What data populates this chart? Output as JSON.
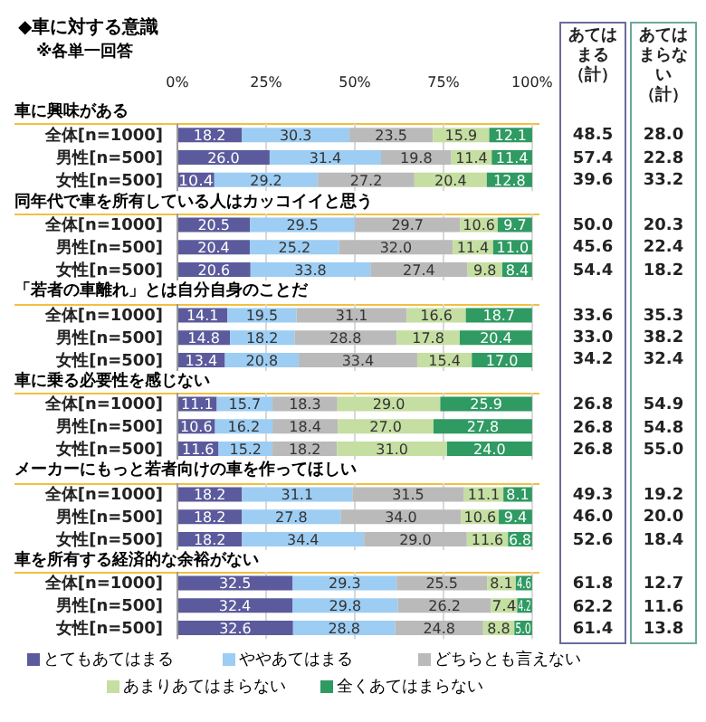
{
  "chart_data": [
    {
      "type": "other",
      "title": "◆車に対する意識",
      "subtitle": "※各単一回答"
    },
    {
      "type": "bar",
      "orientation": "horizontal",
      "stacked": true,
      "title": "車に興味がある",
      "categories": [
        "全体[n=1000]",
        "男性[n=500]",
        "女性[n=500]"
      ],
      "series": [
        {
          "color": "#5b5a9c",
          "values": [
            18.2,
            26.0,
            10.4
          ],
          "value_labels": [
            "18.2",
            "26.0",
            "10.4"
          ]
        },
        {
          "color": "#9dcdf3",
          "values": [
            30.3,
            31.4,
            29.2
          ],
          "value_labels": [
            "30.3",
            "31.4",
            "29.2"
          ]
        },
        {
          "color": "#bababa",
          "values": [
            23.5,
            19.8,
            27.2
          ],
          "value_labels": [
            "23.5",
            "19.8",
            "27.2"
          ]
        },
        {
          "color": "#c5dea2",
          "values": [
            15.9,
            11.4,
            20.4
          ],
          "value_labels": [
            "15.9",
            "11.4",
            "20.4"
          ]
        },
        {
          "color": "#2f9a62",
          "values": [
            12.1,
            11.4,
            12.8
          ],
          "value_labels": [
            "12.1",
            "11.4",
            "12.8"
          ]
        }
      ],
      "xlim": [
        0,
        100
      ],
      "xticks": [
        {
          "value": 0,
          "label": "0%"
        },
        {
          "value": 25,
          "label": "25%"
        },
        {
          "value": 50,
          "label": "50%"
        },
        {
          "value": 75,
          "label": "75%"
        },
        {
          "value": 100,
          "label": "100%"
        }
      ],
      "grid": "x"
    },
    {
      "type": "bar",
      "orientation": "horizontal",
      "stacked": true,
      "title": "同年代で車を所有している人はカッコイイと思う",
      "categories": [
        "全体[n=1000]",
        "男性[n=500]",
        "女性[n=500]"
      ],
      "series": [
        {
          "color": "#5b5a9c",
          "values": [
            20.5,
            20.4,
            20.6
          ],
          "value_labels": [
            "20.5",
            "20.4",
            "20.6"
          ]
        },
        {
          "color": "#9dcdf3",
          "values": [
            29.5,
            25.2,
            33.8
          ],
          "value_labels": [
            "29.5",
            "25.2",
            "33.8"
          ]
        },
        {
          "color": "#bababa",
          "values": [
            29.7,
            32.0,
            27.4
          ],
          "value_labels": [
            "29.7",
            "32.0",
            "27.4"
          ]
        },
        {
          "color": "#c5dea2",
          "values": [
            10.6,
            11.4,
            9.8
          ],
          "value_labels": [
            "10.6",
            "11.4",
            "9.8"
          ]
        },
        {
          "color": "#2f9a62",
          "values": [
            9.7,
            11.0,
            8.4
          ],
          "value_labels": [
            "9.7",
            "11.0",
            "8.4"
          ]
        }
      ],
      "xlim": [
        0,
        100
      ],
      "xticks": [
        0,
        25,
        50,
        75,
        100
      ],
      "grid": "x",
      "tick_labels": "y"
    },
    {
      "type": "bar",
      "orientation": "horizontal",
      "stacked": true,
      "title": "「若者の車離れ」とは自分自身のことだ",
      "categories": [
        "全体[n=1000]",
        "男性[n=500]",
        "女性[n=500]"
      ],
      "series": [
        {
          "color": "#5b5a9c",
          "values": [
            14.1,
            14.8,
            13.4
          ],
          "value_labels": [
            "14.1",
            "14.8",
            "13.4"
          ]
        },
        {
          "color": "#9dcdf3",
          "values": [
            19.5,
            18.2,
            20.8
          ],
          "value_labels": [
            "19.5",
            "18.2",
            "20.8"
          ]
        },
        {
          "color": "#bababa",
          "values": [
            31.1,
            28.8,
            33.4
          ],
          "value_labels": [
            "31.1",
            "28.8",
            "33.4"
          ]
        },
        {
          "color": "#c5dea2",
          "values": [
            16.6,
            17.8,
            15.4
          ],
          "value_labels": [
            "16.6",
            "17.8",
            "15.4"
          ]
        },
        {
          "color": "#2f9a62",
          "values": [
            18.7,
            20.4,
            17.0
          ],
          "value_labels": [
            "18.7",
            "20.4",
            "17.0"
          ]
        }
      ],
      "xlim": [
        0,
        100
      ],
      "xticks": [
        0,
        25,
        50,
        75,
        100
      ],
      "grid": "x",
      "tick_labels": "y"
    },
    {
      "type": "bar",
      "orientation": "horizontal",
      "stacked": true,
      "title": "車に乗る必要性を感じない",
      "categories": [
        "全体[n=1000]",
        "男性[n=500]",
        "女性[n=500]"
      ],
      "series": [
        {
          "color": "#5b5a9c",
          "values": [
            11.1,
            10.6,
            11.6
          ],
          "value_labels": [
            "11.1",
            "10.6",
            "11.6"
          ]
        },
        {
          "color": "#9dcdf3",
          "values": [
            15.7,
            16.2,
            15.2
          ],
          "value_labels": [
            "15.7",
            "16.2",
            "15.2"
          ]
        },
        {
          "color": "#bababa",
          "values": [
            18.3,
            18.4,
            18.2
          ],
          "value_labels": [
            "18.3",
            "18.4",
            "18.2"
          ]
        },
        {
          "color": "#c5dea2",
          "values": [
            29.0,
            27.0,
            31.0
          ],
          "value_labels": [
            "29.0",
            "27.0",
            "31.0"
          ]
        },
        {
          "color": "#2f9a62",
          "values": [
            25.9,
            27.8,
            24.0
          ],
          "value_labels": [
            "25.9",
            "27.8",
            "24.0"
          ]
        }
      ],
      "xlim": [
        0,
        100
      ],
      "xticks": [
        0,
        25,
        50,
        75,
        100
      ],
      "grid": "x",
      "tick_labels": "y"
    },
    {
      "type": "bar",
      "orientation": "horizontal",
      "stacked": true,
      "title": "メーカーにもっと若者向けの車を作ってほしい",
      "categories": [
        "全体[n=1000]",
        "男性[n=500]",
        "女性[n=500]"
      ],
      "series": [
        {
          "color": "#5b5a9c",
          "values": [
            18.2,
            18.2,
            18.2
          ],
          "value_labels": [
            "18.2",
            "18.2",
            "18.2"
          ]
        },
        {
          "color": "#9dcdf3",
          "values": [
            31.1,
            27.8,
            34.4
          ],
          "value_labels": [
            "31.1",
            "27.8",
            "34.4"
          ]
        },
        {
          "color": "#bababa",
          "values": [
            31.5,
            34.0,
            29.0
          ],
          "value_labels": [
            "31.5",
            "34.0",
            "29.0"
          ]
        },
        {
          "color": "#c5dea2",
          "values": [
            11.1,
            10.6,
            11.6
          ],
          "value_labels": [
            "11.1",
            "10.6",
            "11.6"
          ]
        },
        {
          "color": "#2f9a62",
          "values": [
            8.1,
            9.4,
            6.8
          ],
          "value_labels": [
            "8.1",
            "9.4",
            "6.8"
          ]
        }
      ],
      "xlim": [
        0,
        100
      ],
      "xticks": [
        0,
        25,
        50,
        75,
        100
      ],
      "grid": "x",
      "tick_labels": "y"
    },
    {
      "type": "bar",
      "orientation": "horizontal",
      "stacked": true,
      "title": "車を所有する経済的な余裕がない",
      "categories": [
        "全体[n=1000]",
        "男性[n=500]",
        "女性[n=500]"
      ],
      "series": [
        {
          "name": "とてもあてはまる",
          "color": "#5b5a9c",
          "values": [
            32.5,
            32.4,
            32.6
          ],
          "value_labels": [
            "32.5",
            "32.4",
            "32.6"
          ]
        },
        {
          "name": "ややあてはまる",
          "color": "#9dcdf3",
          "values": [
            29.3,
            29.8,
            28.8
          ],
          "value_labels": [
            "29.3",
            "29.8",
            "28.8"
          ]
        },
        {
          "name": "どちらとも言えない",
          "color": "#bababa",
          "values": [
            25.5,
            26.2,
            24.8
          ],
          "value_labels": [
            "25.5",
            "26.2",
            "24.8"
          ]
        },
        {
          "name": "あまりあてはまらない",
          "color": "#c5dea2",
          "values": [
            8.1,
            7.4,
            8.8
          ],
          "value_labels": [
            "8.1",
            "7.4",
            "8.8"
          ]
        },
        {
          "name": "全くあてはまらない",
          "color": "#2f9a62",
          "values": [
            4.6,
            4.2,
            5.0
          ],
          "value_labels": [
            "4.6",
            "4.2",
            "5.0"
          ]
        }
      ],
      "xlim": [
        0,
        100
      ],
      "xticks": [
        0,
        25,
        50,
        75,
        100
      ],
      "grid": "x",
      "tick_labels": "y",
      "legend": "bottom"
    },
    {
      "type": "other",
      "title": "あてはまる（計）",
      "annotations": [
        "48.5",
        "57.4",
        "39.6",
        "50.0",
        "45.6",
        "54.4",
        "33.6",
        "33.0",
        "34.2",
        "26.8",
        "26.8",
        "26.8",
        "49.3",
        "46.0",
        "52.6",
        "61.8",
        "62.2",
        "61.4"
      ]
    },
    {
      "type": "other",
      "title": "あてはまらない（計）",
      "annotations": [
        "28.0",
        "22.8",
        "33.2",
        "20.3",
        "22.4",
        "18.2",
        "35.3",
        "38.2",
        "32.4",
        "54.9",
        "54.8",
        "55.0",
        "19.2",
        "20.0",
        "18.4",
        "12.7",
        "11.6",
        "13.8"
      ]
    }
  ]
}
